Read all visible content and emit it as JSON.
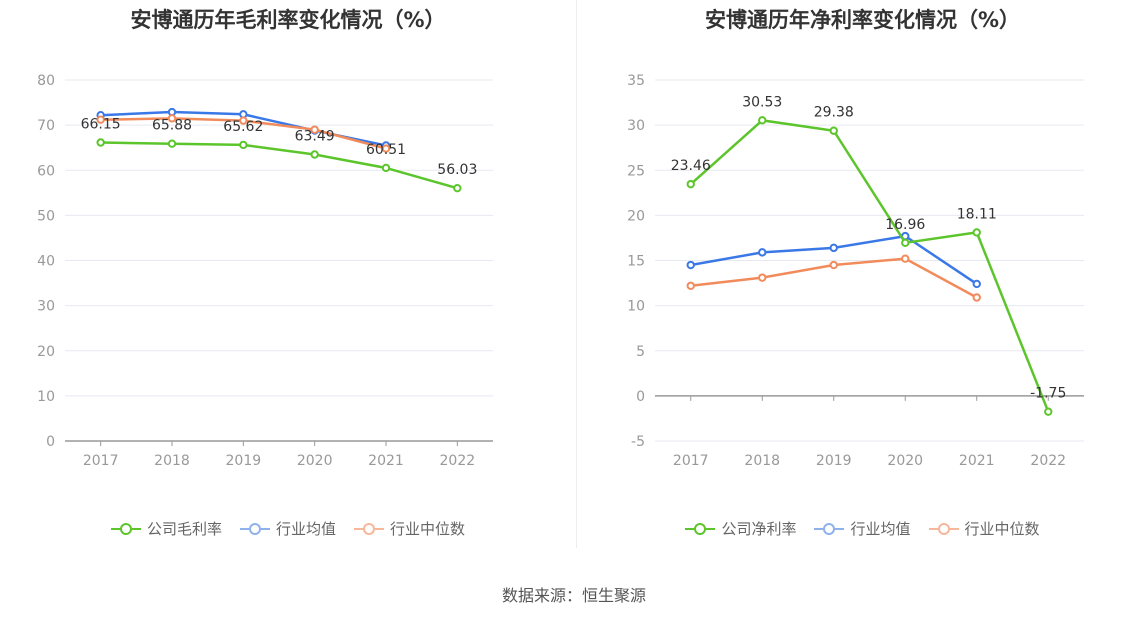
{
  "source": "数据来源：恒生聚源",
  "chart_data": [
    {
      "type": "line",
      "title": "安博通历年毛利率变化情况（%）",
      "x": [
        "2017",
        "2018",
        "2019",
        "2020",
        "2021",
        "2022"
      ],
      "ylim": [
        0,
        80
      ],
      "yticks": [
        0,
        10,
        20,
        30,
        40,
        50,
        60,
        70,
        80
      ],
      "grid": true,
      "legend_position": "bottom",
      "series": [
        {
          "name": "公司毛利率",
          "color": "#5cc52b",
          "values": [
            66.15,
            65.88,
            65.62,
            63.49,
            60.51,
            56.03
          ],
          "labels": [
            "66.15",
            "65.88",
            "65.62",
            "63.49",
            "60.51",
            "56.03"
          ]
        },
        {
          "name": "行业均值",
          "color": "#3b78e7",
          "values": [
            72.2,
            72.9,
            72.4,
            68.8,
            65.5,
            null
          ]
        },
        {
          "name": "行业中位数",
          "color": "#f28b5c",
          "values": [
            71.2,
            71.5,
            71.0,
            69.0,
            64.8,
            null
          ]
        }
      ]
    },
    {
      "type": "line",
      "title": "安博通历年净利率变化情况（%）",
      "x": [
        "2017",
        "2018",
        "2019",
        "2020",
        "2021",
        "2022"
      ],
      "ylim": [
        -5,
        35
      ],
      "yticks": [
        -5,
        0,
        5,
        10,
        15,
        20,
        25,
        30,
        35
      ],
      "grid": true,
      "legend_position": "bottom",
      "series": [
        {
          "name": "公司净利率",
          "color": "#5cc52b",
          "values": [
            23.46,
            30.53,
            29.38,
            16.96,
            18.11,
            -1.75
          ],
          "labels": [
            "23.46",
            "30.53",
            "29.38",
            "16.96",
            "18.11",
            "-1.75"
          ]
        },
        {
          "name": "行业均值",
          "color": "#3b78e7",
          "values": [
            14.5,
            15.9,
            16.4,
            17.7,
            12.4,
            null
          ]
        },
        {
          "name": "行业中位数",
          "color": "#f28b5c",
          "values": [
            12.2,
            13.1,
            14.5,
            15.2,
            10.9,
            null
          ]
        }
      ]
    }
  ]
}
